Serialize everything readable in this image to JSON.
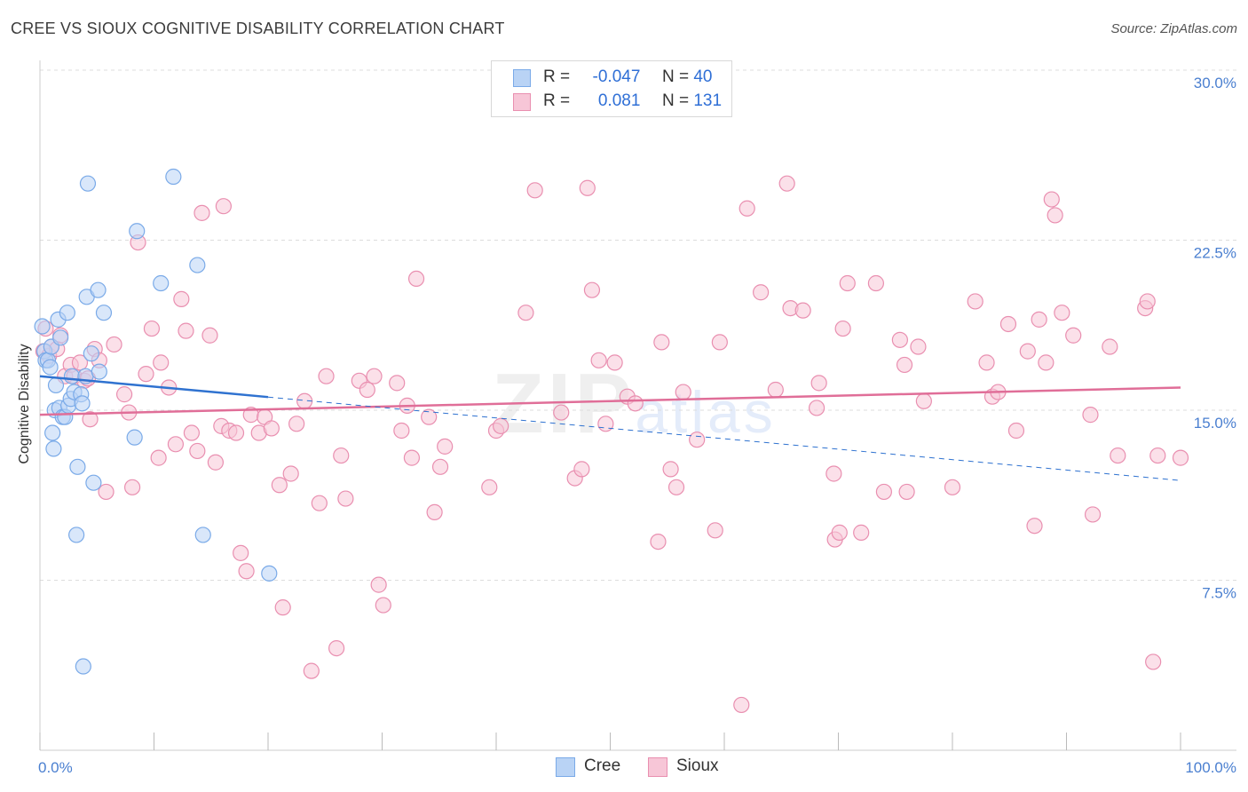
{
  "header": {
    "title": "CREE VS SIOUX COGNITIVE DISABILITY CORRELATION CHART",
    "source": "Source: ZipAtlas.com"
  },
  "watermark": {
    "main": "ZIP",
    "sub": "atlas"
  },
  "legend": {
    "cree": {
      "r_label": "R =",
      "r_value": "-0.047",
      "n_label": "N =",
      "n_value": "40"
    },
    "sioux": {
      "r_label": "R =",
      "r_value": "0.081",
      "n_label": "N =",
      "n_value": "131"
    }
  },
  "bottom_legend": {
    "cree": "Cree",
    "sioux": "Sioux"
  },
  "colors": {
    "cree": "#7aaae8",
    "cree_fill": "#b9d3f5",
    "cree_line": "#2f72d0",
    "sioux": "#e98fb0",
    "sioux_fill": "#f7c6d7",
    "sioux_line": "#e06e98",
    "tick_text": "#4a7fd0",
    "grid": "#dddddd"
  },
  "chart_data": {
    "type": "scatter",
    "title": "CREE VS SIOUX COGNITIVE DISABILITY CORRELATION CHART",
    "xlabel": "",
    "ylabel": "Cognitive Disability",
    "xlim": [
      0,
      100
    ],
    "ylim": [
      0,
      30
    ],
    "x_tick_labels": [
      "0.0%",
      "100.0%"
    ],
    "y_ticks": [
      7.5,
      15.0,
      22.5,
      30.0
    ],
    "y_tick_labels": [
      "7.5%",
      "15.0%",
      "22.5%",
      "30.0%"
    ],
    "grid": true,
    "legend_position": "top-center",
    "series": [
      {
        "name": "Cree",
        "r": -0.047,
        "n": 40,
        "trend": {
          "x": [
            0,
            100
          ],
          "y": [
            16.5,
            11.9
          ],
          "solid_until_x": 20
        },
        "points": [
          [
            0.2,
            18.7
          ],
          [
            0.4,
            17.6
          ],
          [
            0.5,
            17.2
          ],
          [
            0.7,
            17.2
          ],
          [
            0.9,
            16.9
          ],
          [
            1.0,
            17.8
          ],
          [
            1.1,
            14.0
          ],
          [
            1.2,
            13.3
          ],
          [
            1.3,
            15.0
          ],
          [
            1.4,
            16.1
          ],
          [
            1.6,
            19.0
          ],
          [
            1.7,
            15.1
          ],
          [
            1.8,
            18.2
          ],
          [
            2.0,
            14.7
          ],
          [
            2.2,
            14.7
          ],
          [
            2.4,
            19.3
          ],
          [
            2.5,
            15.2
          ],
          [
            2.7,
            15.5
          ],
          [
            2.8,
            16.5
          ],
          [
            3.0,
            15.8
          ],
          [
            3.2,
            9.5
          ],
          [
            3.3,
            12.5
          ],
          [
            3.6,
            15.7
          ],
          [
            3.7,
            15.3
          ],
          [
            3.8,
            3.7
          ],
          [
            4.0,
            16.5
          ],
          [
            4.1,
            20.0
          ],
          [
            4.2,
            25.0
          ],
          [
            4.5,
            17.5
          ],
          [
            4.7,
            11.8
          ],
          [
            5.1,
            20.3
          ],
          [
            5.2,
            16.7
          ],
          [
            5.6,
            19.3
          ],
          [
            8.3,
            13.8
          ],
          [
            8.5,
            22.9
          ],
          [
            10.6,
            20.6
          ],
          [
            11.7,
            25.3
          ],
          [
            13.8,
            21.4
          ],
          [
            14.3,
            9.5
          ],
          [
            20.1,
            7.8
          ]
        ]
      },
      {
        "name": "Sioux",
        "r": 0.081,
        "n": 131,
        "trend": {
          "x": [
            0,
            100
          ],
          "y": [
            14.8,
            16.0
          ]
        },
        "points": [
          [
            0.3,
            17.6
          ],
          [
            0.5,
            18.6
          ],
          [
            0.8,
            17.4
          ],
          [
            1.0,
            17.8
          ],
          [
            1.5,
            17.7
          ],
          [
            1.8,
            18.3
          ],
          [
            2.2,
            16.5
          ],
          [
            2.7,
            17.0
          ],
          [
            3.0,
            16.5
          ],
          [
            3.5,
            17.1
          ],
          [
            3.9,
            16.3
          ],
          [
            4.2,
            16.4
          ],
          [
            4.4,
            14.6
          ],
          [
            4.8,
            17.7
          ],
          [
            5.2,
            17.2
          ],
          [
            5.8,
            11.4
          ],
          [
            6.5,
            17.9
          ],
          [
            7.4,
            15.7
          ],
          [
            7.8,
            14.9
          ],
          [
            8.1,
            11.6
          ],
          [
            8.6,
            22.4
          ],
          [
            9.3,
            16.6
          ],
          [
            9.8,
            18.6
          ],
          [
            10.4,
            12.9
          ],
          [
            10.6,
            17.1
          ],
          [
            11.3,
            16.0
          ],
          [
            11.9,
            13.5
          ],
          [
            12.4,
            19.9
          ],
          [
            12.8,
            18.5
          ],
          [
            13.3,
            14.0
          ],
          [
            13.8,
            13.2
          ],
          [
            14.2,
            23.7
          ],
          [
            14.9,
            18.3
          ],
          [
            15.4,
            12.7
          ],
          [
            15.9,
            14.3
          ],
          [
            16.1,
            24.0
          ],
          [
            16.6,
            14.1
          ],
          [
            17.2,
            14.0
          ],
          [
            17.6,
            8.7
          ],
          [
            18.1,
            7.9
          ],
          [
            18.5,
            14.8
          ],
          [
            19.2,
            14.0
          ],
          [
            19.7,
            14.7
          ],
          [
            20.3,
            14.2
          ],
          [
            21.0,
            11.7
          ],
          [
            21.3,
            6.3
          ],
          [
            22.0,
            12.2
          ],
          [
            22.5,
            14.4
          ],
          [
            23.2,
            15.4
          ],
          [
            23.8,
            3.5
          ],
          [
            24.5,
            10.9
          ],
          [
            25.1,
            16.5
          ],
          [
            26.0,
            4.5
          ],
          [
            26.4,
            13.0
          ],
          [
            26.8,
            11.1
          ],
          [
            28.0,
            16.3
          ],
          [
            28.7,
            15.9
          ],
          [
            29.3,
            16.5
          ],
          [
            29.7,
            7.3
          ],
          [
            30.1,
            6.4
          ],
          [
            31.3,
            16.2
          ],
          [
            31.7,
            14.1
          ],
          [
            32.2,
            15.2
          ],
          [
            32.6,
            12.9
          ],
          [
            33.0,
            20.8
          ],
          [
            34.1,
            14.7
          ],
          [
            34.6,
            10.5
          ],
          [
            35.1,
            12.5
          ],
          [
            35.5,
            13.4
          ],
          [
            39.4,
            11.6
          ],
          [
            40.0,
            14.1
          ],
          [
            40.4,
            14.3
          ],
          [
            42.6,
            19.3
          ],
          [
            43.4,
            24.7
          ],
          [
            45.7,
            14.9
          ],
          [
            46.9,
            12.0
          ],
          [
            47.5,
            12.4
          ],
          [
            48.0,
            24.8
          ],
          [
            48.4,
            20.3
          ],
          [
            49.0,
            17.2
          ],
          [
            49.6,
            14.4
          ],
          [
            50.4,
            17.1
          ],
          [
            51.5,
            15.6
          ],
          [
            52.2,
            15.3
          ],
          [
            54.2,
            9.2
          ],
          [
            54.5,
            18.0
          ],
          [
            55.3,
            12.4
          ],
          [
            55.8,
            11.6
          ],
          [
            56.4,
            15.8
          ],
          [
            57.6,
            13.7
          ],
          [
            59.2,
            9.7
          ],
          [
            59.6,
            18.0
          ],
          [
            62.0,
            23.9
          ],
          [
            63.2,
            20.2
          ],
          [
            64.5,
            15.9
          ],
          [
            65.5,
            25.0
          ],
          [
            65.8,
            19.5
          ],
          [
            66.9,
            19.4
          ],
          [
            68.1,
            15.1
          ],
          [
            68.3,
            16.2
          ],
          [
            69.6,
            12.2
          ],
          [
            69.7,
            9.3
          ],
          [
            70.1,
            9.6
          ],
          [
            70.4,
            18.6
          ],
          [
            70.8,
            20.6
          ],
          [
            72.0,
            9.6
          ],
          [
            73.3,
            20.6
          ],
          [
            74.0,
            11.4
          ],
          [
            75.4,
            18.1
          ],
          [
            75.8,
            17.0
          ],
          [
            76.0,
            11.4
          ],
          [
            77.0,
            17.8
          ],
          [
            77.5,
            15.4
          ],
          [
            80.0,
            11.6
          ],
          [
            82.0,
            19.8
          ],
          [
            83.0,
            17.1
          ],
          [
            83.5,
            15.6
          ],
          [
            84.0,
            15.8
          ],
          [
            84.9,
            18.8
          ],
          [
            85.6,
            14.1
          ],
          [
            86.6,
            17.6
          ],
          [
            87.2,
            9.9
          ],
          [
            87.6,
            19.0
          ],
          [
            88.2,
            17.1
          ],
          [
            88.7,
            24.3
          ],
          [
            89.0,
            23.6
          ],
          [
            89.6,
            19.3
          ],
          [
            90.6,
            18.3
          ],
          [
            92.1,
            14.8
          ],
          [
            92.3,
            10.4
          ],
          [
            93.8,
            17.8
          ],
          [
            94.5,
            13.0
          ],
          [
            96.9,
            19.5
          ],
          [
            97.1,
            19.8
          ],
          [
            97.6,
            3.9
          ],
          [
            98.0,
            13.0
          ],
          [
            100.0,
            12.9
          ],
          [
            61.5,
            2.0
          ]
        ]
      }
    ]
  }
}
